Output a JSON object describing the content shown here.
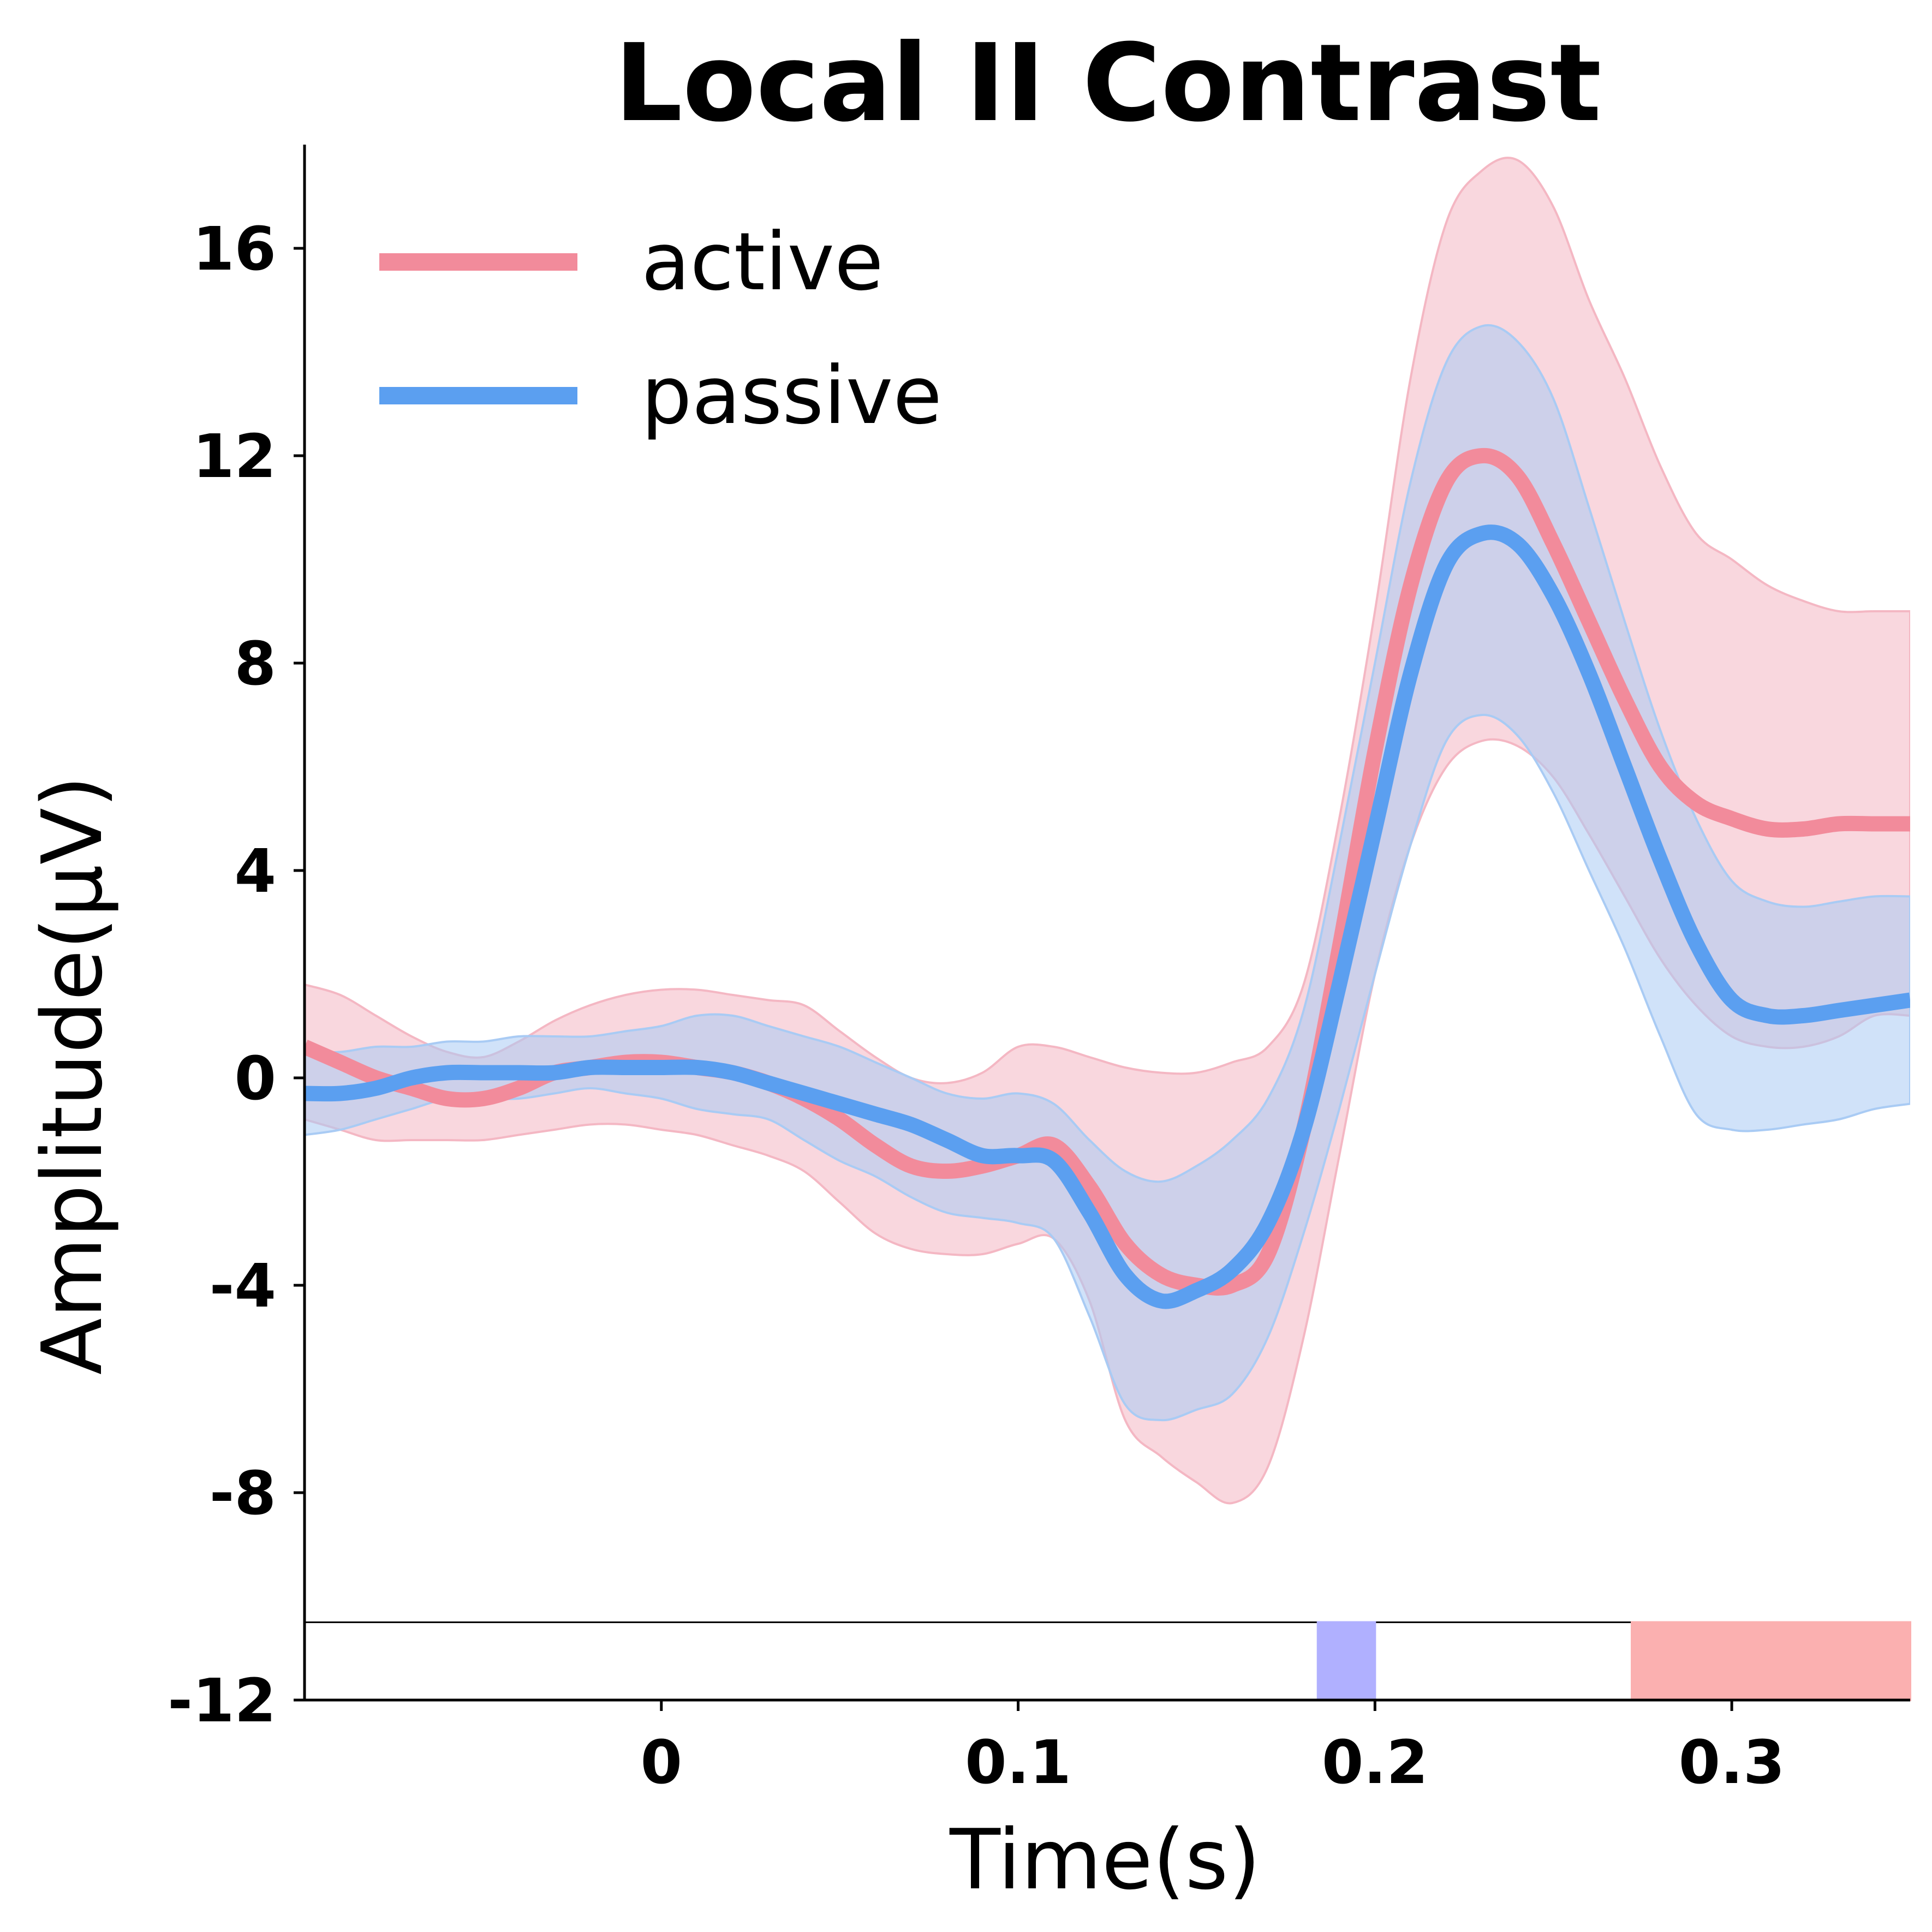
{
  "chart_data": {
    "type": "line",
    "title": "Local II Contrast",
    "xlabel": "Time(s)",
    "ylabel": "Amplitude(μV)",
    "xlim": [
      -0.1,
      0.35
    ],
    "ylim": [
      -12,
      18
    ],
    "x_ticks": [
      0,
      0.1,
      0.2,
      0.3
    ],
    "x_tick_labels": [
      "0",
      "0.1",
      "0.2",
      "0.3"
    ],
    "y_ticks": [
      -12,
      -8,
      -4,
      0,
      4,
      8,
      12,
      16
    ],
    "y_tick_labels": [
      "-12",
      "-8",
      "-4",
      "0",
      "4",
      "8",
      "12",
      "16"
    ],
    "legend_position": "top-left",
    "grid": false,
    "x": [
      -0.1,
      -0.09,
      -0.08,
      -0.07,
      -0.06,
      -0.05,
      -0.04,
      -0.03,
      -0.02,
      -0.01,
      0.0,
      0.01,
      0.02,
      0.03,
      0.04,
      0.05,
      0.06,
      0.07,
      0.08,
      0.09,
      0.1,
      0.11,
      0.12,
      0.13,
      0.14,
      0.15,
      0.16,
      0.17,
      0.18,
      0.19,
      0.2,
      0.21,
      0.22,
      0.23,
      0.24,
      0.25,
      0.26,
      0.27,
      0.28,
      0.29,
      0.3,
      0.31,
      0.32,
      0.33,
      0.34,
      0.35
    ],
    "series": [
      {
        "name": "active",
        "color": "#f28b9b",
        "band_color": "#f4b7c3",
        "values": [
          0.6,
          0.3,
          0.0,
          -0.2,
          -0.4,
          -0.4,
          -0.2,
          0.1,
          0.2,
          0.3,
          0.3,
          0.2,
          0.1,
          -0.1,
          -0.4,
          -0.8,
          -1.3,
          -1.7,
          -1.8,
          -1.7,
          -1.5,
          -1.3,
          -2.1,
          -3.2,
          -3.8,
          -4.0,
          -4.0,
          -3.4,
          -1.0,
          2.5,
          6.3,
          9.5,
          11.5,
          12.0,
          11.6,
          10.3,
          8.8,
          7.3,
          6.0,
          5.3,
          5.0,
          4.8,
          4.8,
          4.9,
          4.9,
          4.9
        ],
        "upper": [
          1.8,
          1.6,
          1.2,
          0.8,
          0.5,
          0.4,
          0.7,
          1.1,
          1.4,
          1.6,
          1.7,
          1.7,
          1.6,
          1.5,
          1.4,
          0.9,
          0.4,
          0.0,
          -0.1,
          0.1,
          0.6,
          0.6,
          0.4,
          0.2,
          0.1,
          0.1,
          0.3,
          0.6,
          1.8,
          5.0,
          9.0,
          13.5,
          16.5,
          17.5,
          17.7,
          16.8,
          15.0,
          13.5,
          11.8,
          10.5,
          10.0,
          9.5,
          9.2,
          9.0,
          9.0,
          9.0
        ],
        "lower": [
          -0.8,
          -1.0,
          -1.2,
          -1.2,
          -1.2,
          -1.2,
          -1.1,
          -1.0,
          -0.9,
          -0.9,
          -1.0,
          -1.1,
          -1.3,
          -1.5,
          -1.8,
          -2.4,
          -3.0,
          -3.3,
          -3.4,
          -3.4,
          -3.2,
          -3.1,
          -4.3,
          -6.6,
          -7.3,
          -7.8,
          -8.2,
          -7.5,
          -5.0,
          -1.5,
          2.0,
          4.5,
          6.0,
          6.5,
          6.4,
          5.8,
          4.7,
          3.5,
          2.3,
          1.4,
          0.8,
          0.6,
          0.6,
          0.8,
          1.2,
          1.2
        ]
      },
      {
        "name": "passive",
        "color": "#5b9ff0",
        "band_color": "#a9cbf4",
        "values": [
          -0.3,
          -0.3,
          -0.2,
          0.0,
          0.1,
          0.1,
          0.1,
          0.1,
          0.2,
          0.2,
          0.2,
          0.2,
          0.1,
          -0.1,
          -0.3,
          -0.5,
          -0.7,
          -0.9,
          -1.2,
          -1.5,
          -1.5,
          -1.6,
          -2.6,
          -3.8,
          -4.3,
          -4.1,
          -3.7,
          -2.8,
          -1.0,
          1.8,
          4.8,
          7.8,
          9.9,
          10.5,
          10.3,
          9.3,
          7.8,
          6.0,
          4.2,
          2.6,
          1.5,
          1.2,
          1.2,
          1.3,
          1.4,
          1.5
        ],
        "upper": [
          0.5,
          0.5,
          0.6,
          0.6,
          0.7,
          0.7,
          0.8,
          0.8,
          0.8,
          0.9,
          1.0,
          1.2,
          1.2,
          1.0,
          0.8,
          0.6,
          0.3,
          0.0,
          -0.3,
          -0.4,
          -0.3,
          -0.5,
          -1.2,
          -1.8,
          -2.0,
          -1.7,
          -1.2,
          -0.4,
          1.3,
          4.5,
          8.0,
          11.5,
          13.8,
          14.5,
          14.2,
          13.1,
          11.0,
          8.8,
          6.7,
          5.0,
          3.8,
          3.4,
          3.3,
          3.4,
          3.5,
          3.5
        ],
        "lower": [
          -1.1,
          -1.0,
          -0.8,
          -0.6,
          -0.4,
          -0.4,
          -0.4,
          -0.3,
          -0.2,
          -0.3,
          -0.4,
          -0.6,
          -0.7,
          -0.8,
          -1.2,
          -1.6,
          -1.9,
          -2.3,
          -2.6,
          -2.7,
          -2.8,
          -3.1,
          -4.6,
          -6.3,
          -6.6,
          -6.4,
          -6.1,
          -5.0,
          -3.0,
          -0.6,
          2.0,
          4.5,
          6.5,
          7.0,
          6.6,
          5.5,
          4.0,
          2.5,
          0.8,
          -0.7,
          -1.0,
          -1.0,
          -0.9,
          -0.8,
          -0.6,
          -0.5
        ]
      }
    ],
    "significance": {
      "baseline_y": -10.5,
      "intervals": [
        {
          "series": "passive",
          "color": "#b0b0ff",
          "x_start": 0.184,
          "x_end": 0.2
        },
        {
          "series": "active",
          "color": "#fbb0b0",
          "x_start": 0.272,
          "x_end": 0.35
        }
      ]
    }
  }
}
